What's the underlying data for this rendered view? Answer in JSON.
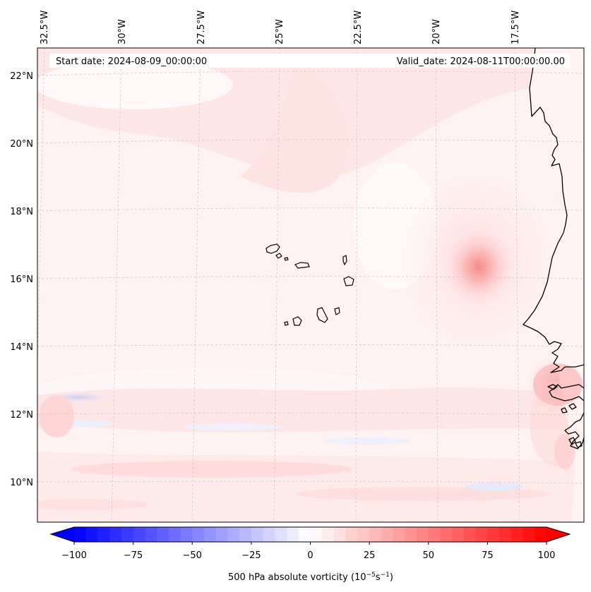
{
  "header": {
    "start_date": "Start date: 2024-08-09_00:00:00",
    "valid_date": "Valid_date: 2024-08-11T00:00:00.00"
  },
  "map": {
    "lon_labels": [
      "32.5°W",
      "30°W",
      "27.5°W",
      "25°W",
      "22.5°W",
      "20°W",
      "17.5°W"
    ],
    "lat_labels": [
      "22°N",
      "20°N",
      "18°N",
      "16°N",
      "14°N",
      "12°N",
      "10°N"
    ],
    "field": "500 hPa absolute vorticity",
    "vortex_center": {
      "lon": -18.8,
      "lat": 16.4,
      "value": 60
    }
  },
  "colorbar": {
    "ticks": [
      "−100",
      "−75",
      "−50",
      "−25",
      "0",
      "25",
      "50",
      "75",
      "100"
    ],
    "min": -100,
    "max": 100,
    "step": 5,
    "label_main": "500 hPa absolute vorticity (10",
    "label_exp1": "−5",
    "label_mid": "s",
    "label_exp2": "−1",
    "label_end": ")",
    "cmap_low": "#0000ff",
    "cmap_mid": "#ffffff",
    "cmap_high": "#ff0000"
  }
}
